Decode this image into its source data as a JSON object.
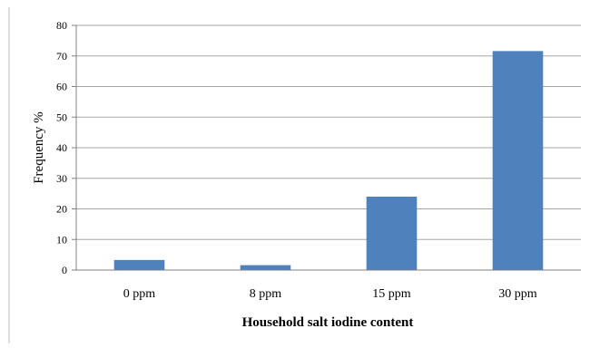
{
  "chart_data": {
    "type": "bar",
    "title": "",
    "xlabel": "Household salt iodine content",
    "ylabel": "Frequency %",
    "categories": [
      "0 ppm",
      "8 ppm",
      "15 ppm",
      "30 ppm"
    ],
    "series": [
      {
        "values": [
          3.3,
          1.6,
          24,
          71.6
        ]
      }
    ],
    "ylim": [
      0,
      80
    ],
    "yticks": [
      "0",
      "10",
      "20",
      "30",
      "40",
      "50",
      "60",
      "70",
      "80"
    ],
    "grid": true,
    "legend": "none",
    "bar_color": "#4f81bd",
    "grid_color": "#a6a6a6",
    "axis_color": "#808080"
  }
}
